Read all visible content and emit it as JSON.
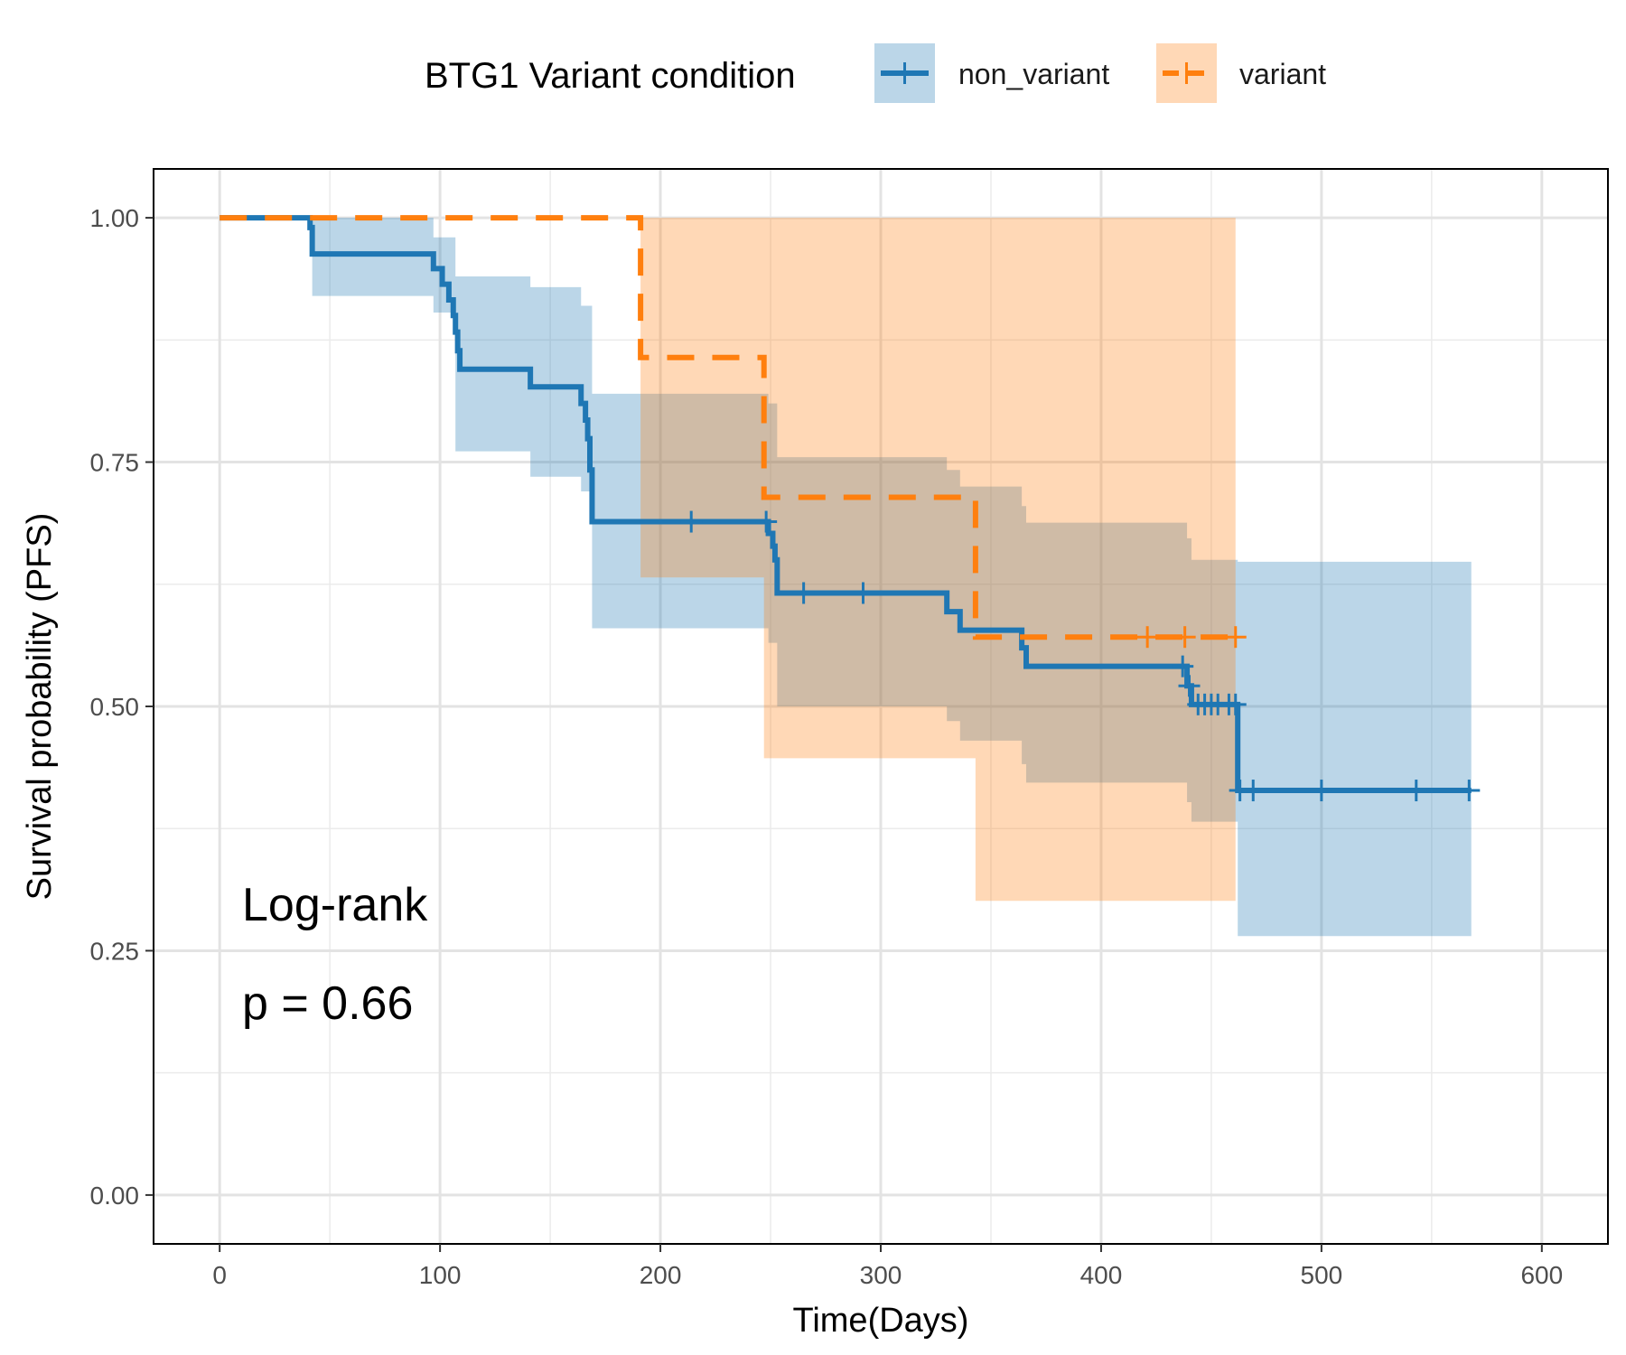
{
  "chart_data": {
    "type": "line",
    "subtype": "kaplan-meier",
    "xlabel": "Time(Days)",
    "ylabel": "Survival probability (PFS)",
    "xlim": [
      -30,
      630
    ],
    "ylim": [
      -0.05,
      1.05
    ],
    "xticks": [
      0,
      100,
      200,
      300,
      400,
      500,
      600
    ],
    "yticks": [
      0.0,
      0.25,
      0.5,
      0.75,
      1.0
    ],
    "ytick_labels": [
      "0.00",
      "0.25",
      "0.50",
      "0.75",
      "1.00"
    ],
    "grid": true,
    "legend": {
      "title": "BTG1 Variant condition",
      "position": "top",
      "entries": [
        "non_variant",
        "variant"
      ]
    },
    "annotation": {
      "line1": "Log-rank",
      "line2": "p = 0.66"
    },
    "series": [
      {
        "name": "non_variant",
        "color": "#1f77b4",
        "linestyle": "solid",
        "steps": [
          [
            0,
            1.0
          ],
          [
            41,
            0.99
          ],
          [
            42,
            0.963
          ],
          [
            97,
            0.948
          ],
          [
            101,
            0.932
          ],
          [
            104,
            0.916
          ],
          [
            106,
            0.9
          ],
          [
            107,
            0.883
          ],
          [
            108,
            0.864
          ],
          [
            109,
            0.845
          ],
          [
            141,
            0.827
          ],
          [
            164,
            0.81
          ],
          [
            166,
            0.793
          ],
          [
            167,
            0.774
          ],
          [
            168,
            0.742
          ],
          [
            169,
            0.689
          ],
          [
            249,
            0.677
          ],
          [
            251,
            0.664
          ],
          [
            252,
            0.65
          ],
          [
            253,
            0.616
          ],
          [
            330,
            0.597
          ],
          [
            336,
            0.578
          ],
          [
            364,
            0.56
          ],
          [
            366,
            0.541
          ],
          [
            439,
            0.521
          ],
          [
            441,
            0.502
          ],
          [
            462,
            0.414
          ]
        ],
        "end_x": 568,
        "censor_times": [
          214,
          248,
          265,
          292,
          437,
          440,
          444,
          447,
          450,
          453,
          458,
          461,
          463,
          469,
          500,
          543,
          567
        ],
        "ci_steps": [
          [
            0,
            1.0,
            1.0
          ],
          [
            42,
            1.0,
            0.92
          ],
          [
            97,
            0.98,
            0.903
          ],
          [
            107,
            0.94,
            0.761
          ],
          [
            141,
            0.929,
            0.735
          ],
          [
            164,
            0.91,
            0.72
          ],
          [
            169,
            0.82,
            0.58
          ],
          [
            249,
            0.81,
            0.565
          ],
          [
            253,
            0.755,
            0.5
          ],
          [
            330,
            0.742,
            0.485
          ],
          [
            336,
            0.725,
            0.465
          ],
          [
            364,
            0.705,
            0.441
          ],
          [
            366,
            0.688,
            0.422
          ],
          [
            439,
            0.672,
            0.402
          ],
          [
            441,
            0.65,
            0.382
          ],
          [
            462,
            0.648,
            0.265
          ]
        ],
        "ci_end_x": 568
      },
      {
        "name": "variant",
        "color": "#ff7f0e",
        "linestyle": "dashed",
        "steps": [
          [
            0,
            1.0
          ],
          [
            191,
            0.857
          ],
          [
            247,
            0.714
          ],
          [
            343,
            0.571
          ]
        ],
        "end_x": 462,
        "censor_times": [
          421,
          438,
          461
        ],
        "ci_steps": [
          [
            0,
            1.0,
            1.0
          ],
          [
            191,
            1.0,
            0.632
          ],
          [
            247,
            1.0,
            0.447
          ],
          [
            343,
            1.0,
            0.301
          ]
        ],
        "ci_end_x": 461
      }
    ]
  }
}
